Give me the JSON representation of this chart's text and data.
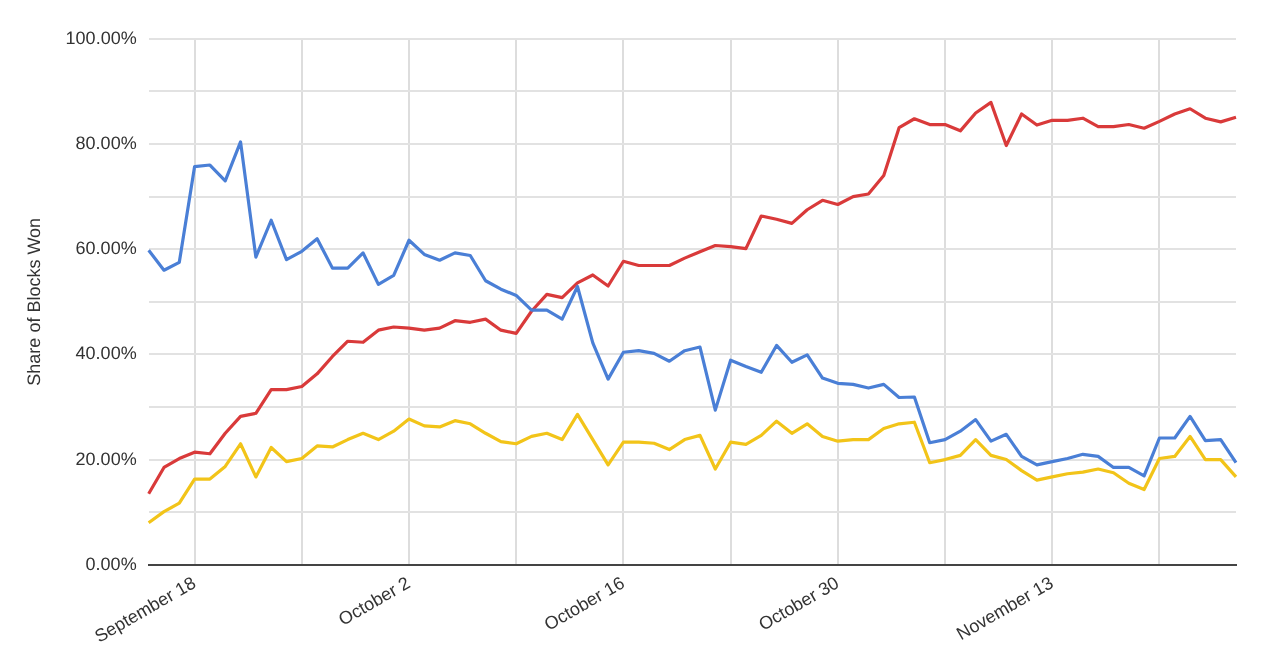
{
  "chart_data": {
    "type": "line",
    "ylabel": "Share of Blocks Won",
    "categories": [
      null,
      null,
      null,
      "September 18",
      null,
      null,
      null,
      null,
      null,
      null,
      null,
      null,
      null,
      null,
      null,
      null,
      null,
      "October 2",
      null,
      null,
      null,
      null,
      null,
      null,
      null,
      null,
      null,
      null,
      null,
      null,
      null,
      "October 16",
      null,
      null,
      null,
      null,
      null,
      null,
      null,
      null,
      null,
      null,
      null,
      null,
      null,
      "October 30",
      null,
      null,
      null,
      null,
      null,
      null,
      null,
      null,
      null,
      null,
      null,
      null,
      null,
      "November 13",
      null,
      null,
      null,
      null,
      null,
      null,
      null,
      null,
      null,
      null,
      null,
      null
    ],
    "series": [
      {
        "color": "#4a7fd6",
        "values": [
          59.8,
          56,
          57.5,
          75.7,
          76,
          73,
          80.4,
          58.5,
          65.5,
          58,
          59.6,
          62,
          56.4,
          56.4,
          59.3,
          53.3,
          55,
          61.7,
          59,
          57.9,
          59.3,
          58.8,
          54,
          52.4,
          51.2,
          48.4,
          48.4,
          46.7,
          52.9,
          42.2,
          35.3,
          40.4,
          40.7,
          40.2,
          38.7,
          40.7,
          41.4,
          29.4,
          38.9,
          37.7,
          36.6,
          41.7,
          38.5,
          39.9,
          35.5,
          34.5,
          34.3,
          33.6,
          34.3,
          31.8,
          31.9,
          23.2,
          23.8,
          25.4,
          27.6,
          23.5,
          24.8,
          20.6,
          19,
          19.6,
          20.2,
          21,
          20.6,
          18.5,
          18.5,
          16.9,
          24.1,
          24.1,
          28.2,
          23.6,
          23.8,
          19.4
        ]
      },
      {
        "color": "#d93a3a",
        "values": [
          13.5,
          18.5,
          20.2,
          21.4,
          21.1,
          25,
          28.2,
          28.8,
          33.3,
          33.3,
          33.9,
          36.3,
          39.6,
          42.5,
          42.3,
          44.6,
          45.2,
          45,
          44.6,
          45,
          46.4,
          46.1,
          46.7,
          44.6,
          44,
          48.2,
          51.4,
          50.8,
          53.6,
          55.1,
          53,
          57.7,
          56.9,
          56.9,
          56.9,
          58.3,
          59.5,
          60.7,
          60.5,
          60.1,
          66.3,
          65.7,
          64.9,
          67.5,
          69.3,
          68.5,
          70,
          70.5,
          74,
          83.1,
          84.8,
          83.7,
          83.7,
          82.5,
          85.9,
          87.9,
          79.7,
          85.7,
          83.6,
          84.5,
          84.5,
          84.9,
          83.3,
          83.3,
          83.7,
          83,
          84.3,
          85.7,
          86.7,
          84.9,
          84.2,
          85.1
        ]
      },
      {
        "color": "#f2c419",
        "values": [
          8,
          10.1,
          11.7,
          16.3,
          16.3,
          18.7,
          23,
          16.7,
          22.3,
          19.6,
          20.2,
          22.6,
          22.4,
          23.8,
          25,
          23.8,
          25.4,
          27.7,
          26.4,
          26.2,
          27.4,
          26.8,
          25,
          23.4,
          23,
          24.4,
          25,
          23.8,
          28.6,
          23.8,
          19,
          23.3,
          23.3,
          23.1,
          21.9,
          23.8,
          24.6,
          18.2,
          23.3,
          22.9,
          24.6,
          27.3,
          25,
          26.8,
          24.4,
          23.5,
          23.8,
          23.8,
          25.9,
          26.8,
          27.1,
          19.4,
          20,
          20.8,
          23.8,
          20.8,
          20,
          17.9,
          16.1,
          16.7,
          17.3,
          17.6,
          18.2,
          17.5,
          15.5,
          14.3,
          20.2,
          20.6,
          24.4,
          20,
          20,
          16.7
        ]
      }
    ],
    "ylim": [
      0,
      100
    ],
    "yticks": [
      {
        "value": 0,
        "label": "0.00%"
      },
      {
        "value": 10,
        "label": null
      },
      {
        "value": 20,
        "label": "20.00%"
      },
      {
        "value": 30,
        "label": null
      },
      {
        "value": 40,
        "label": "40.00%"
      },
      {
        "value": 50,
        "label": null
      },
      {
        "value": 60,
        "label": "60.00%"
      },
      {
        "value": 70,
        "label": null
      },
      {
        "value": 80,
        "label": "80.00%"
      },
      {
        "value": 90,
        "label": null
      },
      {
        "value": 100,
        "label": "100.00%"
      }
    ],
    "grid": true,
    "legend": false,
    "marker": "none",
    "line_style": "solid"
  }
}
